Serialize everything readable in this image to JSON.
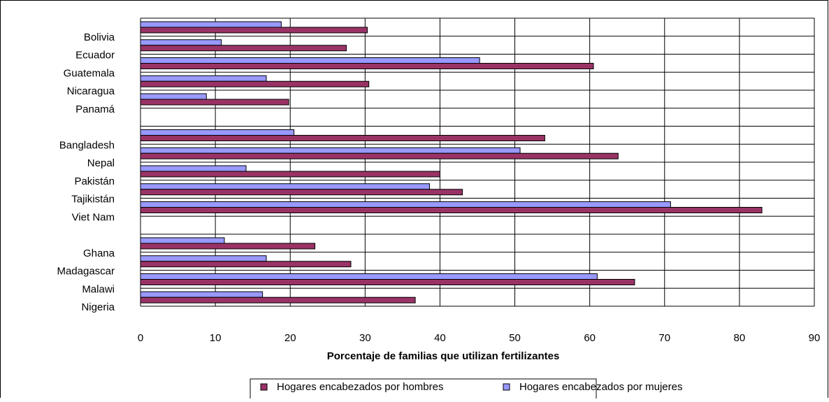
{
  "chart_data": {
    "type": "bar",
    "orientation": "horizontal",
    "title": "",
    "xlabel": "Porcentaje de familias que utilizan fertilizantes",
    "ylabel": "",
    "xlim": [
      0,
      90
    ],
    "x_ticks": [
      0,
      10,
      20,
      30,
      40,
      50,
      60,
      70,
      80,
      90
    ],
    "grid": true,
    "legend_position": "bottom",
    "categories": [
      "Bolivia",
      "Ecuador",
      "Guatemala",
      "Nicaragua",
      "Panamá",
      "",
      "Bangladesh",
      "Nepal",
      "Pakistán",
      "Tajikistán",
      "Viet Nam",
      "",
      "Ghana",
      "Madagascar",
      "Malawi",
      "Nigeria"
    ],
    "series": [
      {
        "name": "Hogares encabezados por hombres",
        "color": "#993366",
        "values": [
          30.3,
          27.5,
          60.5,
          30.5,
          19.8,
          null,
          54.0,
          63.8,
          40.0,
          43.0,
          83.0,
          null,
          23.3,
          28.1,
          66.0,
          36.7
        ]
      },
      {
        "name": "Hogares encabezados por mujeres",
        "color": "#9999ff",
        "values": [
          18.8,
          10.8,
          45.3,
          16.8,
          8.8,
          null,
          20.5,
          50.7,
          14.1,
          38.6,
          70.8,
          null,
          11.2,
          16.8,
          61.0,
          16.3
        ]
      }
    ]
  }
}
